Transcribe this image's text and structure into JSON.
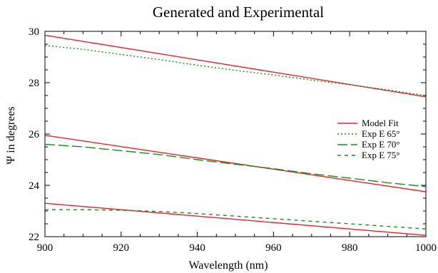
{
  "chart_data": {
    "type": "line",
    "title": "Generated and Experimental",
    "xlabel": "Wavelength (nm)",
    "ylabel": "Ψ in degrees",
    "xlim": [
      900,
      1000
    ],
    "ylim": [
      22,
      30
    ],
    "xticks": [
      900,
      920,
      940,
      960,
      980,
      1000
    ],
    "yticks": [
      22,
      24,
      26,
      28,
      30
    ],
    "grid": false,
    "legend_position": "right",
    "series": [
      {
        "name": "Model Fit",
        "group": "65",
        "color": "#e8202a",
        "style": "solid",
        "x": [
          900,
          1000
        ],
        "y": [
          29.85,
          27.45
        ]
      },
      {
        "name": "Model Fit",
        "group": "70",
        "color": "#e8202a",
        "style": "solid",
        "x": [
          900,
          1000
        ],
        "y": [
          25.95,
          23.75
        ]
      },
      {
        "name": "Model Fit",
        "group": "75",
        "color": "#e8202a",
        "style": "solid",
        "x": [
          900,
          1000
        ],
        "y": [
          23.3,
          22.05
        ]
      },
      {
        "name": "Exp E 65°",
        "color": "#1a8a1a",
        "style": "dotted",
        "x": [
          900,
          910,
          920,
          930,
          940,
          950,
          960,
          970,
          980,
          990,
          1000
        ],
        "y": [
          29.45,
          29.3,
          29.1,
          28.9,
          28.68,
          28.48,
          28.3,
          28.1,
          27.92,
          27.72,
          27.5
        ]
      },
      {
        "name": "Exp E 70°",
        "color": "#1a8a1a",
        "style": "longdash",
        "x": [
          900,
          910,
          920,
          930,
          940,
          950,
          960,
          970,
          980,
          990,
          1000
        ],
        "y": [
          25.6,
          25.5,
          25.35,
          25.2,
          25.0,
          24.82,
          24.65,
          24.45,
          24.28,
          24.1,
          23.95
        ]
      },
      {
        "name": "Exp E 75°",
        "color": "#1a8a1a",
        "style": "shortdash",
        "x": [
          900,
          910,
          920,
          930,
          940,
          950,
          960,
          970,
          980,
          990,
          1000
        ],
        "y": [
          23.05,
          23.05,
          23.03,
          22.98,
          22.9,
          22.8,
          22.7,
          22.6,
          22.5,
          22.4,
          22.3
        ]
      }
    ],
    "legend": [
      {
        "label": "Model Fit",
        "color": "#e8202a",
        "style": "solid"
      },
      {
        "label": "Exp E 65°",
        "color": "#1a8a1a",
        "style": "dotted"
      },
      {
        "label": "Exp E 70°",
        "color": "#1a8a1a",
        "style": "longdash"
      },
      {
        "label": "Exp E 75°",
        "color": "#1a8a1a",
        "style": "shortdash"
      }
    ]
  }
}
